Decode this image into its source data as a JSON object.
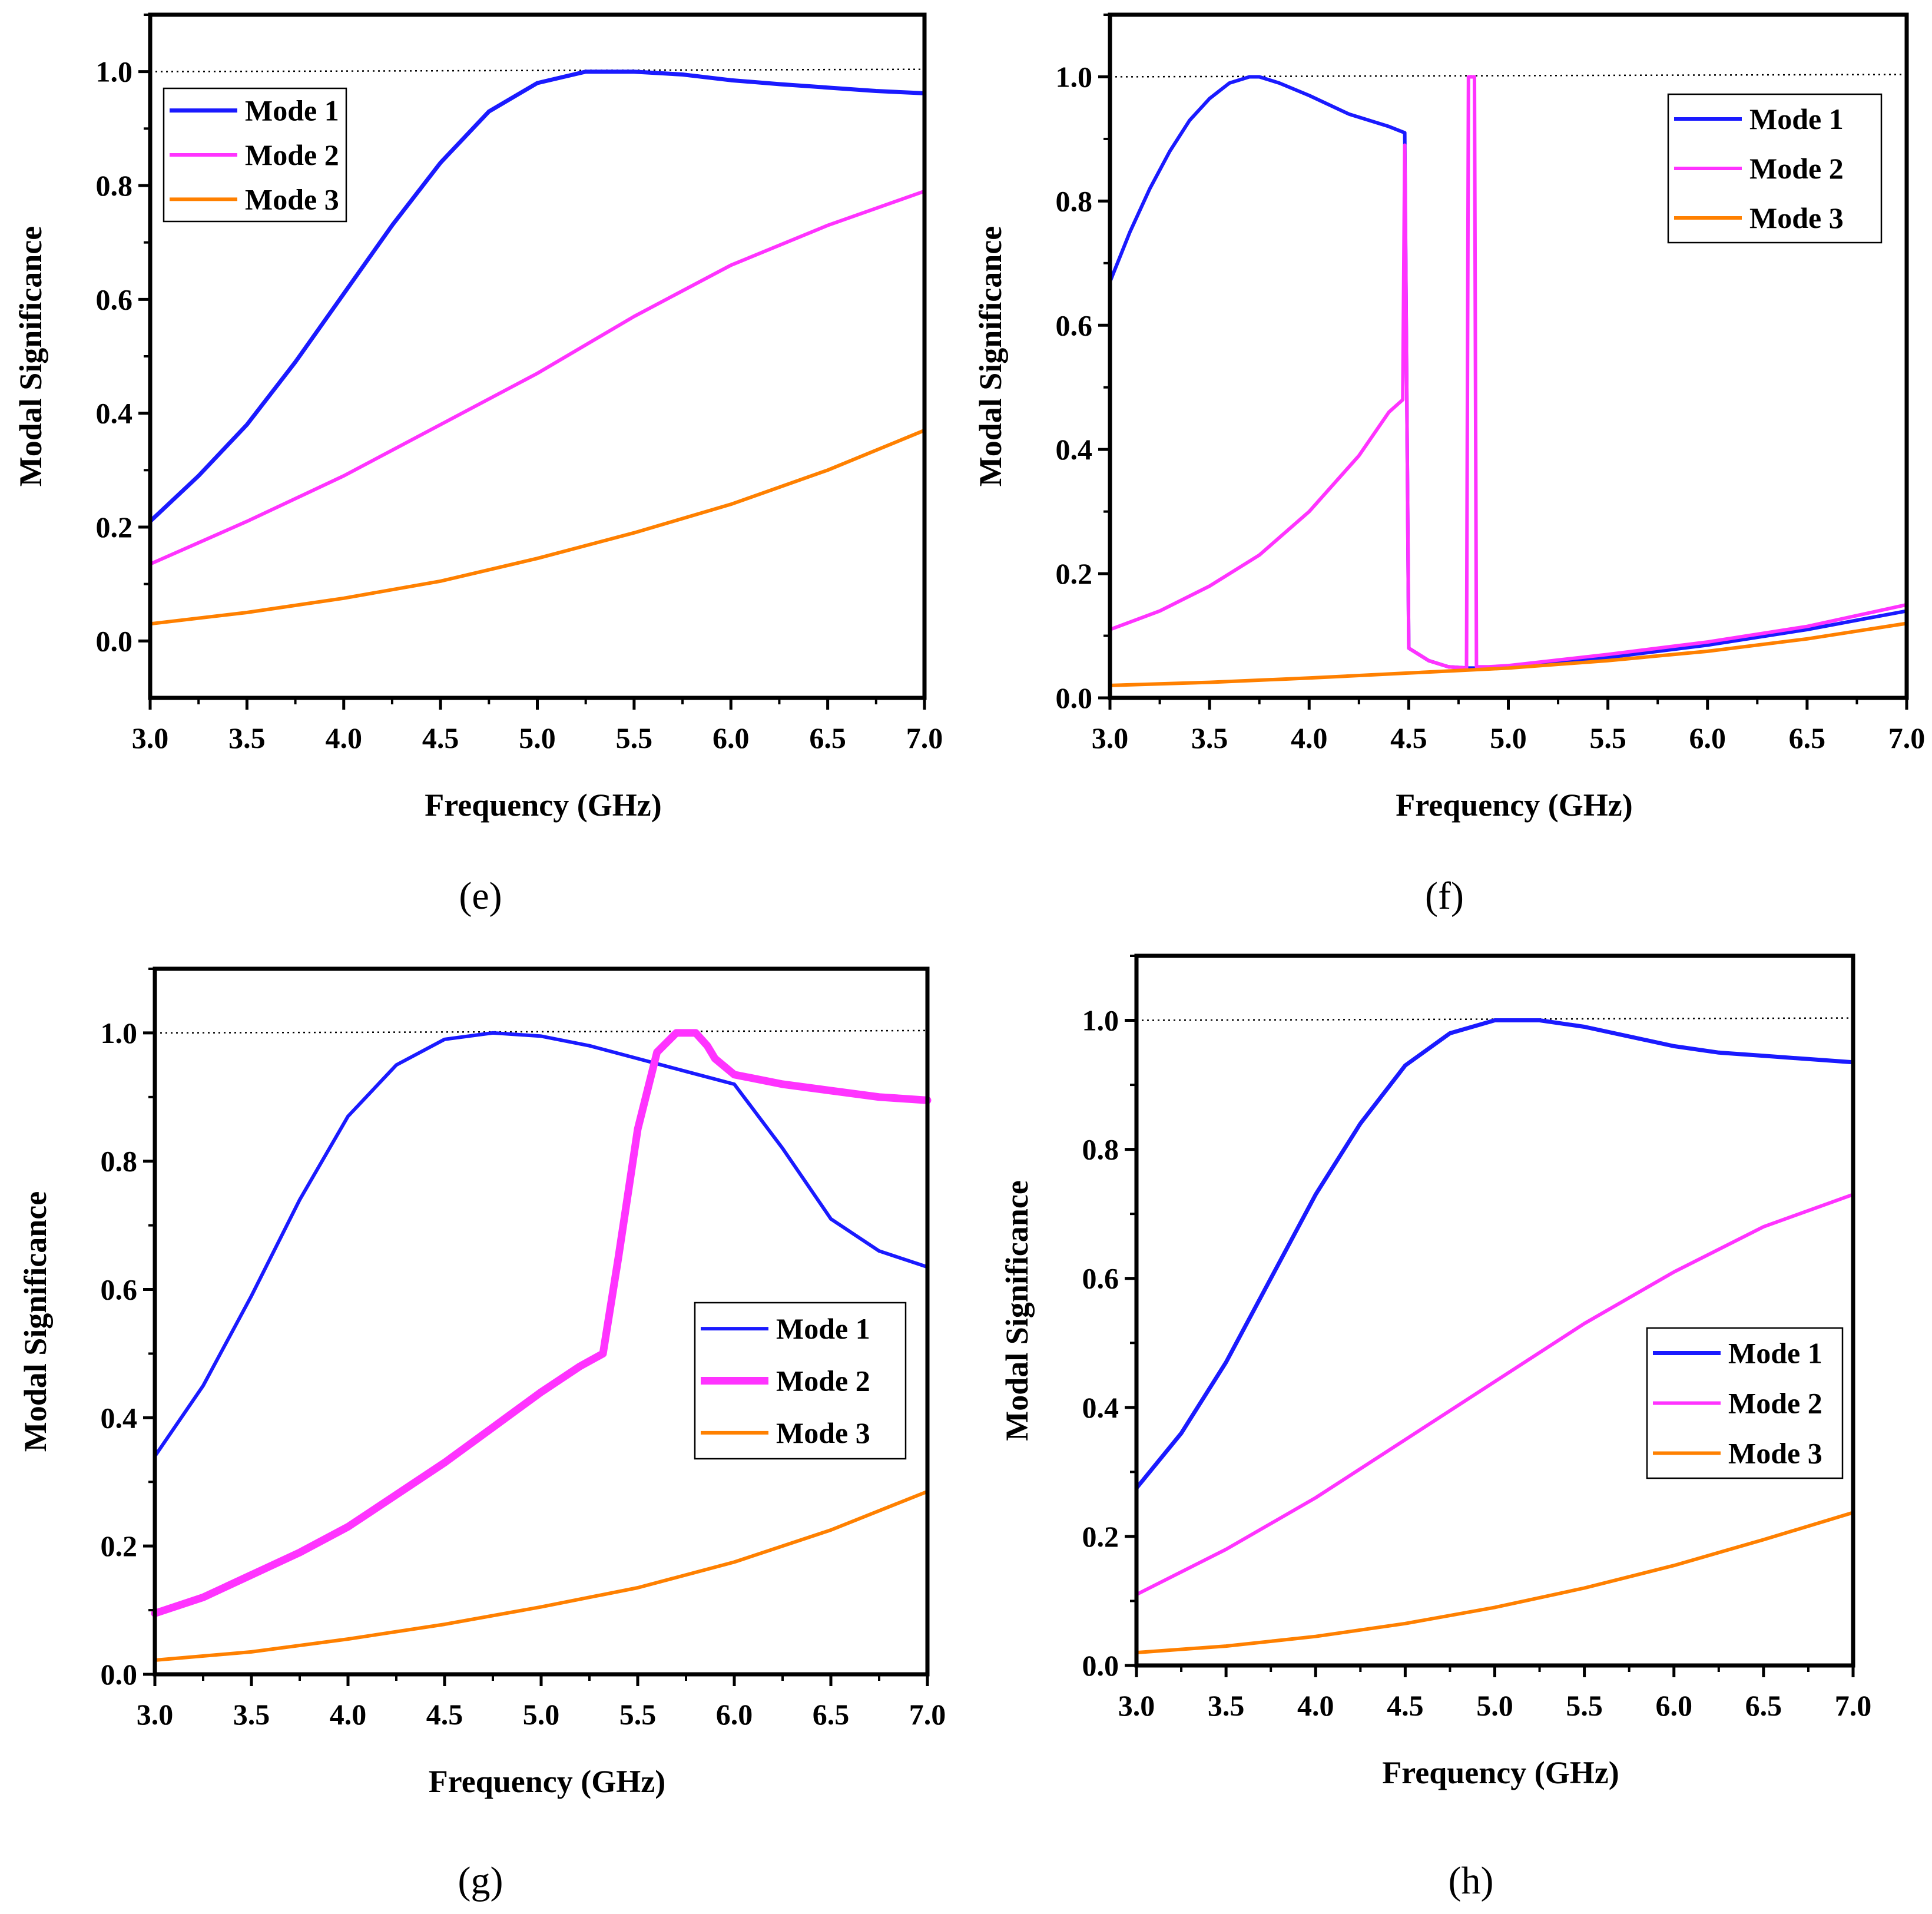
{
  "figure": {
    "panel_labels": [
      "(e)",
      "(f)",
      "(g)",
      "(h)"
    ]
  },
  "chart_data": [
    {
      "panel": "e",
      "type": "line",
      "title": "",
      "xlabel": "Frequency (GHz)",
      "ylabel": "Modal Significance",
      "xlim": [
        3.0,
        7.0
      ],
      "ylim": [
        -0.1,
        1.1
      ],
      "xticks": [
        "3.0",
        "3.5",
        "4.0",
        "4.5",
        "5.0",
        "5.5",
        "6.0",
        "6.5",
        "7.0"
      ],
      "yticks": [
        "0.0",
        "0.2",
        "0.4",
        "0.6",
        "0.8",
        "1.0"
      ],
      "legend_position": "top-left",
      "reference_line": {
        "y": 1.0,
        "style": "dotted"
      },
      "series": [
        {
          "name": "Mode 1",
          "color": "#1a1aff",
          "x": [
            3.0,
            3.25,
            3.5,
            3.75,
            4.0,
            4.25,
            4.5,
            4.75,
            5.0,
            5.25,
            5.5,
            5.75,
            6.0,
            6.25,
            6.5,
            6.75,
            7.0
          ],
          "y": [
            0.21,
            0.29,
            0.38,
            0.49,
            0.61,
            0.73,
            0.84,
            0.93,
            0.98,
            1.0,
            1.0,
            0.995,
            0.985,
            0.978,
            0.972,
            0.966,
            0.962
          ]
        },
        {
          "name": "Mode 2",
          "color": "#ff33ff",
          "x": [
            3.0,
            3.5,
            4.0,
            4.5,
            5.0,
            5.5,
            6.0,
            6.5,
            7.0
          ],
          "y": [
            0.135,
            0.21,
            0.29,
            0.38,
            0.47,
            0.57,
            0.66,
            0.73,
            0.79
          ]
        },
        {
          "name": "Mode 3",
          "color": "#ff8000",
          "x": [
            3.0,
            3.5,
            4.0,
            4.5,
            5.0,
            5.5,
            6.0,
            6.5,
            7.0
          ],
          "y": [
            0.03,
            0.05,
            0.075,
            0.105,
            0.145,
            0.19,
            0.24,
            0.3,
            0.37
          ]
        }
      ]
    },
    {
      "panel": "f",
      "type": "line",
      "title": "",
      "xlabel": "Frequency (GHz)",
      "ylabel": "Modal Significance",
      "xlim": [
        3.0,
        7.0
      ],
      "ylim": [
        0.0,
        1.1
      ],
      "xticks": [
        "3.0",
        "3.5",
        "4.0",
        "4.5",
        "5.0",
        "5.5",
        "6.0",
        "6.5",
        "7.0"
      ],
      "yticks": [
        "0.0",
        "0.2",
        "0.4",
        "0.6",
        "0.8",
        "1.0"
      ],
      "legend_position": "top-right",
      "reference_line": {
        "y": 1.0,
        "style": "dotted"
      },
      "series": [
        {
          "name": "Mode 1",
          "color": "#1a1aff",
          "x": [
            3.0,
            3.1,
            3.2,
            3.3,
            3.4,
            3.5,
            3.6,
            3.7,
            3.75,
            3.85,
            4.0,
            4.2,
            4.4,
            4.48,
            4.49,
            4.5,
            4.6,
            4.7,
            4.8,
            4.9,
            5.0,
            5.5,
            6.0,
            6.5,
            7.0
          ],
          "y": [
            0.67,
            0.75,
            0.82,
            0.88,
            0.93,
            0.965,
            0.99,
            1.0,
            1.0,
            0.99,
            0.97,
            0.94,
            0.92,
            0.91,
            0.5,
            0.08,
            0.06,
            0.05,
            0.048,
            0.048,
            0.05,
            0.065,
            0.085,
            0.11,
            0.14
          ]
        },
        {
          "name": "Mode 2",
          "color": "#ff33ff",
          "x": [
            3.0,
            3.25,
            3.5,
            3.75,
            4.0,
            4.25,
            4.4,
            4.47,
            4.48,
            4.49,
            4.5,
            4.6,
            4.7,
            4.79,
            4.8,
            4.81,
            4.82,
            4.83,
            4.84,
            4.9,
            5.0,
            5.5,
            6.0,
            6.5,
            7.0
          ],
          "y": [
            0.11,
            0.14,
            0.18,
            0.23,
            0.3,
            0.39,
            0.46,
            0.48,
            0.89,
            0.5,
            0.08,
            0.06,
            0.05,
            0.048,
            1.0,
            1.0,
            1.0,
            1.0,
            0.05,
            0.05,
            0.052,
            0.07,
            0.09,
            0.115,
            0.15
          ]
        },
        {
          "name": "Mode 3",
          "color": "#ff8000",
          "x": [
            3.0,
            3.5,
            4.0,
            4.5,
            5.0,
            5.5,
            6.0,
            6.5,
            7.0
          ],
          "y": [
            0.02,
            0.025,
            0.032,
            0.04,
            0.048,
            0.06,
            0.075,
            0.095,
            0.12
          ]
        }
      ]
    },
    {
      "panel": "g",
      "type": "line",
      "title": "",
      "xlabel": "Frequency (GHz)",
      "ylabel": "Modal Significance",
      "xlim": [
        3.0,
        7.0
      ],
      "ylim": [
        0.0,
        1.1
      ],
      "xticks": [
        "3.0",
        "3.5",
        "4.0",
        "4.5",
        "5.0",
        "5.5",
        "6.0",
        "6.5",
        "7.0"
      ],
      "yticks": [
        "0.0",
        "0.2",
        "0.4",
        "0.6",
        "0.8",
        "1.0"
      ],
      "legend_position": "center-right",
      "reference_line": {
        "y": 1.0,
        "style": "dotted"
      },
      "series": [
        {
          "name": "Mode 1",
          "color": "#1a1aff",
          "x": [
            3.0,
            3.25,
            3.5,
            3.75,
            4.0,
            4.25,
            4.5,
            4.75,
            5.0,
            5.25,
            5.5,
            5.75,
            6.0,
            6.25,
            6.5,
            6.75,
            7.0
          ],
          "y": [
            0.34,
            0.45,
            0.59,
            0.74,
            0.87,
            0.95,
            0.99,
            1.0,
            0.995,
            0.98,
            0.96,
            0.94,
            0.92,
            0.82,
            0.71,
            0.66,
            0.635
          ]
        },
        {
          "name": "Mode 2",
          "color": "#ff33ff",
          "x": [
            3.0,
            3.25,
            3.5,
            3.75,
            4.0,
            4.25,
            4.5,
            4.75,
            5.0,
            5.2,
            5.32,
            5.4,
            5.5,
            5.6,
            5.7,
            5.8,
            5.86,
            5.9,
            6.0,
            6.25,
            6.5,
            6.75,
            7.0
          ],
          "y": [
            0.095,
            0.12,
            0.155,
            0.19,
            0.23,
            0.28,
            0.33,
            0.385,
            0.44,
            0.48,
            0.5,
            0.65,
            0.85,
            0.97,
            1.0,
            1.0,
            0.98,
            0.96,
            0.935,
            0.92,
            0.91,
            0.9,
            0.895
          ]
        },
        {
          "name": "Mode 3",
          "color": "#ff8000",
          "x": [
            3.0,
            3.5,
            4.0,
            4.5,
            5.0,
            5.5,
            6.0,
            6.5,
            7.0
          ],
          "y": [
            0.022,
            0.035,
            0.055,
            0.078,
            0.105,
            0.135,
            0.175,
            0.225,
            0.285
          ]
        }
      ]
    },
    {
      "panel": "h",
      "type": "line",
      "title": "",
      "xlabel": "Frequency (GHz)",
      "ylabel": "Modal Significance",
      "xlim": [
        3.0,
        7.0
      ],
      "ylim": [
        0.0,
        1.1
      ],
      "xticks": [
        "3.0",
        "3.5",
        "4.0",
        "4.5",
        "5.0",
        "5.5",
        "6.0",
        "6.5",
        "7.0"
      ],
      "yticks": [
        "0.0",
        "0.2",
        "0.4",
        "0.6",
        "0.8",
        "1.0"
      ],
      "legend_position": "center-right",
      "reference_line": {
        "y": 1.0,
        "style": "dotted"
      },
      "series": [
        {
          "name": "Mode 1",
          "color": "#1a1aff",
          "x": [
            3.0,
            3.25,
            3.5,
            3.75,
            4.0,
            4.25,
            4.5,
            4.75,
            5.0,
            5.25,
            5.5,
            5.75,
            6.0,
            6.25,
            6.5,
            6.75,
            7.0
          ],
          "y": [
            0.275,
            0.36,
            0.47,
            0.6,
            0.73,
            0.84,
            0.93,
            0.98,
            1.0,
            1.0,
            0.99,
            0.975,
            0.96,
            0.95,
            0.945,
            0.94,
            0.935
          ]
        },
        {
          "name": "Mode 2",
          "color": "#ff33ff",
          "x": [
            3.0,
            3.5,
            4.0,
            4.5,
            5.0,
            5.5,
            6.0,
            6.5,
            7.0
          ],
          "y": [
            0.11,
            0.18,
            0.26,
            0.35,
            0.44,
            0.53,
            0.61,
            0.68,
            0.73
          ]
        },
        {
          "name": "Mode 3",
          "color": "#ff8000",
          "x": [
            3.0,
            3.5,
            4.0,
            4.5,
            5.0,
            5.5,
            6.0,
            6.5,
            7.0
          ],
          "y": [
            0.02,
            0.03,
            0.045,
            0.065,
            0.09,
            0.12,
            0.155,
            0.195,
            0.237
          ]
        }
      ]
    }
  ]
}
